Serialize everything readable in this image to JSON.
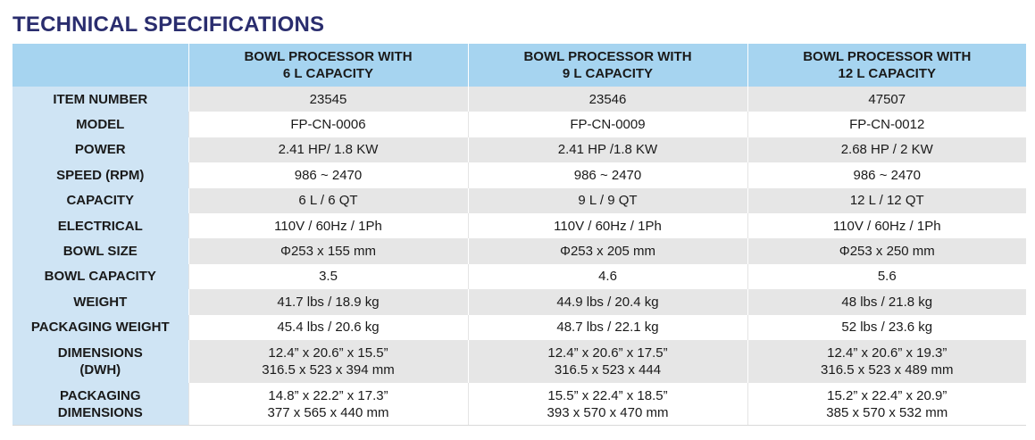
{
  "title": "TECHNICAL SPECIFICATIONS",
  "columns": [
    {
      "line1": "BOWL PROCESSOR WITH",
      "line2": "6 L CAPACITY"
    },
    {
      "line1": "BOWL PROCESSOR WITH",
      "line2": "9 L CAPACITY"
    },
    {
      "line1": "BOWL PROCESSOR WITH",
      "line2": "12 L CAPACITY"
    }
  ],
  "rows": [
    {
      "label": "ITEM NUMBER",
      "values": [
        "23545",
        "23546",
        "47507"
      ]
    },
    {
      "label": "MODEL",
      "values": [
        "FP-CN-0006",
        "FP-CN-0009",
        "FP-CN-0012"
      ]
    },
    {
      "label": "POWER",
      "values": [
        "2.41 HP/ 1.8 KW",
        "2.41 HP /1.8 KW",
        "2.68 HP / 2 KW"
      ]
    },
    {
      "label": "SPEED (RPM)",
      "values": [
        "986 ~ 2470",
        "986 ~ 2470",
        "986 ~ 2470"
      ]
    },
    {
      "label": "CAPACITY",
      "values": [
        "6 L / 6 QT",
        "9 L / 9 QT",
        "12 L / 12 QT"
      ]
    },
    {
      "label": "ELECTRICAL",
      "values": [
        "110V / 60Hz / 1Ph",
        "110V / 60Hz / 1Ph",
        "110V / 60Hz / 1Ph"
      ]
    },
    {
      "label": "BOWL SIZE",
      "values": [
        "Φ253 x 155 mm",
        "Φ253 x 205 mm",
        "Φ253 x 250 mm"
      ]
    },
    {
      "label": "BOWL CAPACITY",
      "values": [
        "3.5",
        "4.6",
        "5.6"
      ]
    },
    {
      "label": "WEIGHT",
      "values": [
        "41.7 lbs / 18.9 kg",
        "44.9 lbs / 20.4 kg",
        "48 lbs / 21.8 kg"
      ]
    },
    {
      "label": "PACKAGING WEIGHT",
      "values": [
        "45.4 lbs / 20.6 kg",
        "48.7 lbs / 22.1 kg",
        "52 lbs / 23.6 kg"
      ]
    }
  ],
  "dimensions": {
    "label_line1": "DIMENSIONS",
    "label_line2": "(DWH)",
    "values": [
      {
        "line1": "12.4” x 20.6” x 15.5”",
        "line2": "316.5 x 523 x 394 mm"
      },
      {
        "line1": "12.4” x 20.6” x 17.5”",
        "line2": "316.5 x 523 x 444"
      },
      {
        "line1": "12.4” x 20.6” x 19.3”",
        "line2": "316.5 x 523 x 489 mm"
      }
    ]
  },
  "packaging_dimensions": {
    "label_line1": "PACKAGING",
    "label_line2": "DIMENSIONS",
    "values": [
      {
        "line1": "14.8” x 22.2” x 17.3”",
        "line2": "377 x 565 x 440 mm"
      },
      {
        "line1": "15.5” x 22.4” x  18.5”",
        "line2": "393 x 570 x 470 mm"
      },
      {
        "line1": "15.2” x 22.4” x 20.9”",
        "line2": "385 x 570 x 532 mm"
      }
    ]
  },
  "colors": {
    "title": "#2a2d6e",
    "header_bg": "#a6d4f0",
    "label_bg": "#cfe4f4",
    "shaded_row_bg": "#e6e6e6"
  }
}
